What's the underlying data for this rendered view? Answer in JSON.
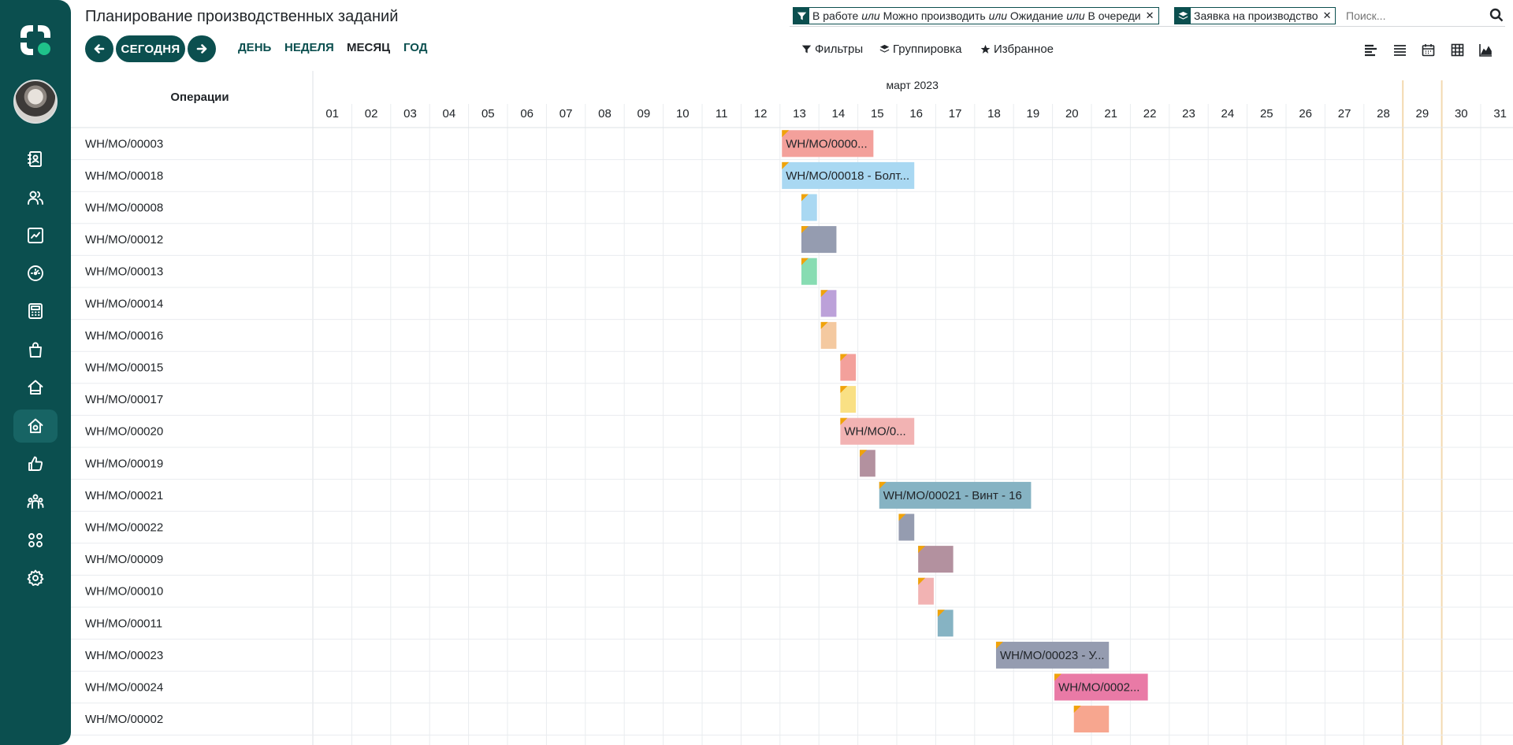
{
  "page": {
    "title": "Планирование производственных заданий"
  },
  "toolbar": {
    "today_label": "СЕГОДНЯ",
    "scales": [
      {
        "label": "ДЕНЬ",
        "active": false
      },
      {
        "label": "НЕДЕЛЯ",
        "active": false
      },
      {
        "label": "МЕСЯЦ",
        "active": true
      },
      {
        "label": "ГОД",
        "active": false
      }
    ]
  },
  "search": {
    "facets": [
      {
        "icon": "filter-icon",
        "parts": [
          "В работе",
          "или",
          "Можно производить",
          "или",
          "Ожидание",
          "или",
          "В очереди"
        ]
      },
      {
        "icon": "layers-icon",
        "parts": [
          "Заявка на производство"
        ]
      }
    ],
    "placeholder": "Поиск..."
  },
  "search_options": {
    "filters_label": "Фильтры",
    "group_label": "Группировка",
    "favorites_label": "Избранное"
  },
  "views": [
    "gantt-view-icon",
    "list-view-icon",
    "calendar-view-icon",
    "pivot-view-icon",
    "graph-view-icon"
  ],
  "sidebar": {
    "icons": [
      "contacts-icon",
      "users-icon",
      "chart-icon",
      "dashboard-icon",
      "calculator-icon",
      "shopping-bag-icon",
      "home-icon",
      "warehouse-icon",
      "thumbs-up-icon",
      "team-icon",
      "apps-icon",
      "settings-icon"
    ],
    "active": "warehouse-icon"
  },
  "gantt": {
    "row_header": "Операции",
    "month_label": "март 2023",
    "days": [
      "01",
      "02",
      "03",
      "04",
      "05",
      "06",
      "07",
      "08",
      "09",
      "10",
      "11",
      "12",
      "13",
      "14",
      "15",
      "16",
      "17",
      "18",
      "19",
      "20",
      "21",
      "22",
      "23",
      "24",
      "25",
      "26",
      "27",
      "28",
      "29",
      "30",
      "31"
    ],
    "today": "29",
    "rows": [
      {
        "label": "WH/MO/00003",
        "start": 13.05,
        "end": 15.4,
        "text": "WH/MO/0000...",
        "color": "#f3a09b"
      },
      {
        "label": "WH/MO/00018",
        "start": 13.05,
        "end": 16.45,
        "text": "WH/MO/00018 - Болт...",
        "color": "#a9d8f2"
      },
      {
        "label": "WH/MO/00008",
        "start": 13.55,
        "end": 13.95,
        "text": "",
        "color": "#a9d8f2"
      },
      {
        "label": "WH/MO/00012",
        "start": 13.55,
        "end": 14.45,
        "text": "",
        "color": "#959cb0"
      },
      {
        "label": "WH/MO/00013",
        "start": 13.55,
        "end": 13.95,
        "text": "",
        "color": "#87dcb2"
      },
      {
        "label": "WH/MO/00014",
        "start": 14.05,
        "end": 14.45,
        "text": "",
        "color": "#bca1d9"
      },
      {
        "label": "WH/MO/00016",
        "start": 14.05,
        "end": 14.45,
        "text": "",
        "color": "#f4c9a0"
      },
      {
        "label": "WH/MO/00015",
        "start": 14.55,
        "end": 14.95,
        "text": "",
        "color": "#f3a09b"
      },
      {
        "label": "WH/MO/00017",
        "start": 14.55,
        "end": 14.95,
        "text": "",
        "color": "#f9e084"
      },
      {
        "label": "WH/MO/00020",
        "start": 14.55,
        "end": 16.45,
        "text": "WH/MO/0...",
        "color": "#f2b3b3"
      },
      {
        "label": "WH/MO/00019",
        "start": 15.05,
        "end": 15.45,
        "text": "",
        "color": "#b3919f"
      },
      {
        "label": "WH/MO/00021",
        "start": 15.55,
        "end": 19.45,
        "text": "WH/MO/00021 - Винт - 16",
        "color": "#86b3c3"
      },
      {
        "label": "WH/MO/00022",
        "start": 16.05,
        "end": 16.45,
        "text": "",
        "color": "#959cb0"
      },
      {
        "label": "WH/MO/00009",
        "start": 16.55,
        "end": 17.45,
        "text": "",
        "color": "#b3919f"
      },
      {
        "label": "WH/MO/00010",
        "start": 16.55,
        "end": 16.95,
        "text": "",
        "color": "#f2b3b3"
      },
      {
        "label": "WH/MO/00011",
        "start": 17.05,
        "end": 17.45,
        "text": "",
        "color": "#86b3c3"
      },
      {
        "label": "WH/MO/00023",
        "start": 18.55,
        "end": 21.45,
        "text": "WH/MO/00023 - У...",
        "color": "#959cb0"
      },
      {
        "label": "WH/MO/00024",
        "start": 20.05,
        "end": 22.45,
        "text": "WH/MO/0002...",
        "color": "#e97aa6"
      },
      {
        "label": "WH/MO/00002",
        "start": 20.55,
        "end": 21.45,
        "text": "",
        "color": "#f7a68f"
      }
    ]
  }
}
